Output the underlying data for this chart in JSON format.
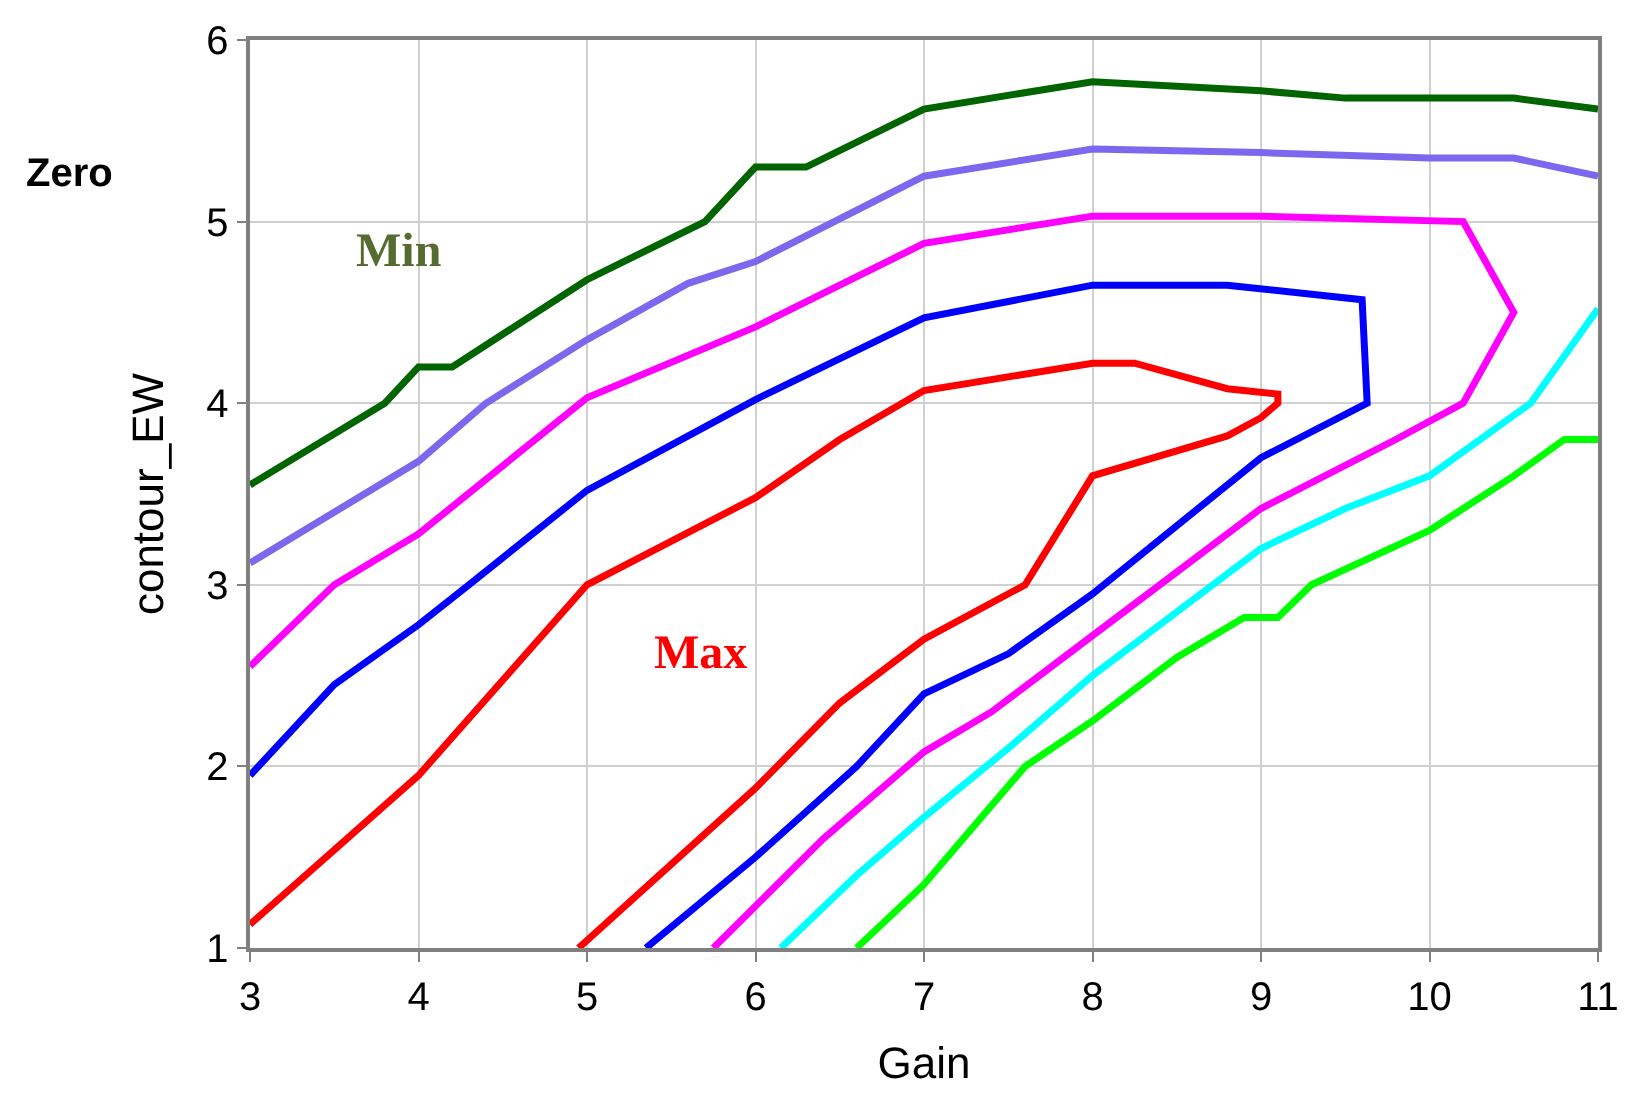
{
  "chart_data": {
    "type": "line",
    "xlabel": "Gain",
    "ylabel": "contour_EW",
    "xlim": [
      3,
      11
    ],
    "ylim": [
      1,
      6
    ],
    "xticks": [
      3,
      4,
      5,
      6,
      7,
      8,
      9,
      10,
      11
    ],
    "yticks": [
      1,
      2,
      3,
      4,
      5,
      6
    ],
    "grid": true,
    "marker": "none",
    "line_style": "solid",
    "annotations": [
      "Zero",
      "Min",
      "Max"
    ],
    "series": [
      {
        "color": "#006400",
        "x": [
          3,
          3.8,
          4.0,
          4.2,
          5,
          5.7,
          6,
          6.3,
          7,
          8,
          9,
          9.5,
          10.5,
          11
        ],
        "values": [
          3.55,
          4.0,
          4.2,
          4.2,
          4.68,
          5.0,
          5.3,
          5.3,
          5.62,
          5.77,
          5.72,
          5.68,
          5.68,
          5.62
        ]
      },
      {
        "color": "#7b68ee",
        "x": [
          3,
          4,
          4.4,
          5,
          5.6,
          6,
          7,
          8,
          9,
          10,
          10.5,
          11
        ],
        "values": [
          3.12,
          3.68,
          4.0,
          4.35,
          4.66,
          4.78,
          5.25,
          5.4,
          5.38,
          5.35,
          5.35,
          5.25
        ]
      },
      {
        "color": "#ff00ff",
        "x": [
          3,
          3.5,
          4,
          5,
          6,
          7,
          8,
          9,
          10.2,
          10.5,
          10.2,
          9.8,
          9,
          8,
          7.4,
          7,
          6.4,
          5.75
        ],
        "values": [
          2.55,
          3.0,
          3.28,
          4.03,
          4.42,
          4.88,
          5.03,
          5.03,
          5.0,
          4.5,
          4.0,
          3.8,
          3.42,
          2.72,
          2.3,
          2.08,
          1.6,
          1
        ]
      },
      {
        "color": "#0000ff",
        "x": [
          3,
          3.5,
          4,
          4.3,
          5,
          6,
          7,
          8,
          8.8,
          9.6,
          9.63,
          9,
          8,
          7.5,
          7,
          6.6,
          6,
          5.35
        ],
        "values": [
          1.95,
          2.45,
          2.78,
          3.0,
          3.52,
          4.02,
          4.47,
          4.65,
          4.65,
          4.57,
          4.0,
          3.7,
          2.95,
          2.62,
          2.4,
          2.0,
          1.5,
          1
        ]
      },
      {
        "color": "#ff0000",
        "x": [
          3,
          4,
          5,
          6,
          6.5,
          7,
          8,
          8.25,
          8.8,
          9.1,
          9.1,
          9,
          8.8,
          8,
          7.6,
          7,
          6.5,
          6,
          4.95
        ],
        "values": [
          1.13,
          1.95,
          3.0,
          3.48,
          3.8,
          4.07,
          4.22,
          4.22,
          4.08,
          4.05,
          4.0,
          3.92,
          3.82,
          3.6,
          3.0,
          2.7,
          2.35,
          1.88,
          1
        ]
      },
      {
        "color": "#00ffff",
        "x": [
          6.15,
          6.6,
          7,
          7.5,
          8,
          8.5,
          9,
          9.5,
          10,
          10.6,
          11
        ],
        "values": [
          1,
          1.4,
          1.72,
          2.1,
          2.5,
          2.85,
          3.2,
          3.42,
          3.6,
          4.0,
          4.52
        ]
      },
      {
        "color": "#00ff00",
        "x": [
          6.6,
          7,
          7.6,
          8,
          8.5,
          8.9,
          9.1,
          9.3,
          10,
          10.5,
          10.8,
          11
        ],
        "values": [
          1,
          1.35,
          2.0,
          2.25,
          2.6,
          2.82,
          2.82,
          3.0,
          3.3,
          3.6,
          3.8,
          3.8
        ]
      }
    ]
  }
}
